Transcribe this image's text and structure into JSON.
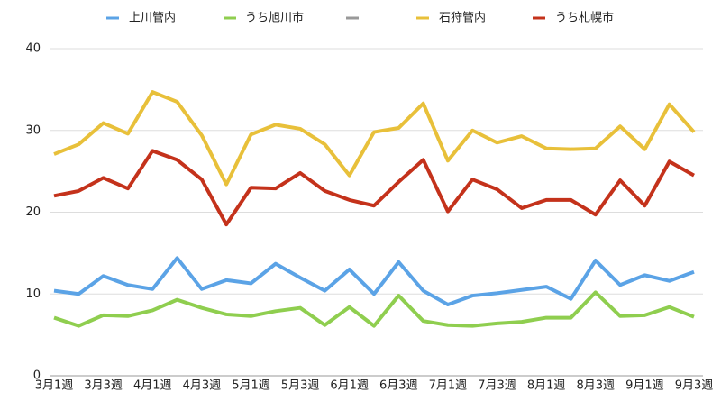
{
  "chart_data": {
    "type": "line",
    "categories": [
      "3月1週",
      null,
      "3月3週",
      null,
      "4月1週",
      null,
      "4月3週",
      null,
      "5月1週",
      null,
      "5月3週",
      null,
      "6月1週",
      null,
      "6月3週",
      null,
      "7月1週",
      null,
      "7月3週",
      null,
      "8月1週",
      null,
      "8月3週",
      null,
      "9月1週",
      null,
      "9月3週"
    ],
    "series": [
      {
        "name": "上川管内",
        "color": "#5ba3e6",
        "values": [
          10.4,
          10.0,
          12.2,
          11.1,
          10.6,
          14.4,
          10.6,
          11.7,
          11.3,
          13.7,
          12.0,
          10.4,
          13.0,
          10.0,
          13.9,
          10.4,
          8.7,
          9.8,
          10.1,
          10.5,
          10.9,
          9.4,
          14.1,
          11.1,
          12.3,
          11.6,
          12.7
        ]
      },
      {
        "name": "うち旭川市",
        "color": "#8fce4f",
        "values": [
          7.1,
          6.1,
          7.4,
          7.3,
          8.0,
          9.3,
          8.3,
          7.5,
          7.3,
          7.9,
          8.3,
          6.2,
          8.4,
          6.1,
          9.8,
          6.7,
          6.2,
          6.1,
          6.4,
          6.6,
          7.1,
          7.1,
          10.2,
          7.3,
          7.4,
          8.4,
          7.2
        ]
      },
      {
        "name": "石狩管内",
        "color": "#e8c03a",
        "values": [
          27.1,
          28.3,
          30.9,
          29.6,
          34.7,
          33.5,
          29.4,
          23.4,
          29.5,
          30.7,
          30.2,
          28.3,
          24.5,
          29.8,
          30.3,
          33.3,
          26.3,
          30.0,
          28.5,
          29.3,
          27.8,
          27.7,
          27.8,
          30.5,
          27.7,
          33.2,
          29.8
        ]
      },
      {
        "name": "うち札幌市",
        "color": "#c4321b",
        "values": [
          22.0,
          22.6,
          24.2,
          22.9,
          27.5,
          26.4,
          24.0,
          18.5,
          23.0,
          22.9,
          24.8,
          22.6,
          21.5,
          20.8,
          23.7,
          26.4,
          20.1,
          24.0,
          22.8,
          20.5,
          21.5,
          21.5,
          19.7,
          23.9,
          20.8,
          26.2,
          24.5
        ]
      }
    ],
    "ylim": [
      0,
      40
    ],
    "yticks": [
      0,
      10,
      20,
      30,
      40
    ],
    "grid": true,
    "legend": "top"
  }
}
